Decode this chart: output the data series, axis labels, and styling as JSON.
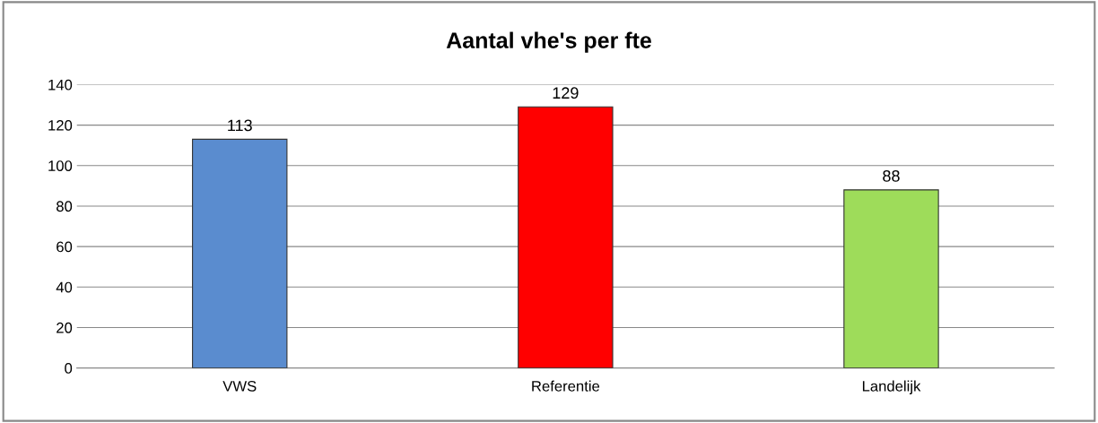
{
  "chart_data": {
    "type": "bar",
    "title": "Aantal vhe's per fte",
    "categories": [
      "VWS",
      "Referentie",
      "Landelijk"
    ],
    "values": [
      113,
      129,
      88
    ],
    "colors": [
      "#5a8ccf",
      "#ff0000",
      "#9edc5a"
    ],
    "ylim": [
      0,
      140
    ],
    "yticks": [
      0,
      20,
      40,
      60,
      80,
      100,
      120,
      140
    ],
    "grid": "y",
    "data_labels": true,
    "legend": false
  }
}
